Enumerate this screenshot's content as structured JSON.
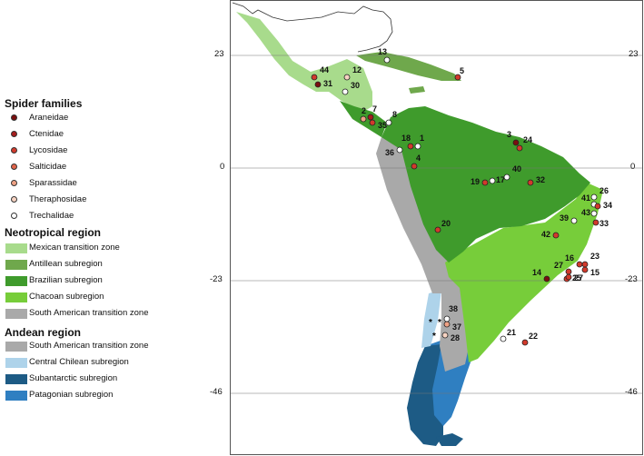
{
  "legend": {
    "spider_heading": "Spider families",
    "families": [
      {
        "label": "Araneidae",
        "color": "#7a0f0f"
      },
      {
        "label": "Ctenidae",
        "color": "#a51d1d"
      },
      {
        "label": "Lycosidae",
        "color": "#d23a2c"
      },
      {
        "label": "Salticidae",
        "color": "#e0644a"
      },
      {
        "label": "Sparassidae",
        "color": "#eea184"
      },
      {
        "label": "Theraphosidae",
        "color": "#f7d3c2"
      },
      {
        "label": "Trechalidae",
        "color": "#ffffff"
      }
    ],
    "neotropical_heading": "Neotropical region",
    "neotropical": [
      {
        "label": "Mexican transition zone",
        "color": "#a8db8c"
      },
      {
        "label": "Antillean subregion",
        "color": "#6fa84c"
      },
      {
        "label": "Brazilian subregion",
        "color": "#3f9b2c"
      },
      {
        "label": "Chacoan subregion",
        "color": "#77cd3a"
      },
      {
        "label": "South American transition zone",
        "color": "#a9a9a9"
      }
    ],
    "andean_heading": "Andean region",
    "andean": [
      {
        "label": "South American transition zone",
        "color": "#a9a9a9"
      },
      {
        "label": "Central Chilean subregion",
        "color": "#aed3ea"
      },
      {
        "label": "Subantarctic subregion",
        "color": "#1d5b85"
      },
      {
        "label": "Patagonian subregion",
        "color": "#2f7fc1"
      }
    ]
  },
  "map": {
    "latitudes": [
      "23",
      "0",
      "-23",
      "-46"
    ],
    "sites": [
      {
        "label": "44",
        "family": "Lycosidae"
      },
      {
        "label": "31",
        "family": "Araneidae"
      },
      {
        "label": "12",
        "family": "Theraphosidae"
      },
      {
        "label": "30",
        "family": "Trechalidae"
      },
      {
        "label": "13",
        "family": "Trechalidae"
      },
      {
        "label": "5",
        "family": "Lycosidae"
      },
      {
        "label": "2",
        "family": "Sparassidae"
      },
      {
        "label": "7",
        "family": "Ctenidae"
      },
      {
        "label": "35",
        "family": "Lycosidae"
      },
      {
        "label": "8",
        "family": "Trechalidae"
      },
      {
        "label": "18",
        "family": "Lycosidae"
      },
      {
        "label": "1",
        "family": "Trechalidae"
      },
      {
        "label": "36",
        "family": "Trechalidae"
      },
      {
        "label": "4",
        "family": "Lycosidae"
      },
      {
        "label": "3",
        "family": "Araneidae"
      },
      {
        "label": "24",
        "family": "Lycosidae"
      },
      {
        "label": "19",
        "family": "Lycosidae"
      },
      {
        "label": "17",
        "family": "Trechalidae"
      },
      {
        "label": "40",
        "family": "Trechalidae"
      },
      {
        "label": "32",
        "family": "Lycosidae"
      },
      {
        "label": "20",
        "family": "Lycosidae"
      },
      {
        "label": "26",
        "family": "Trechalidae"
      },
      {
        "label": "41",
        "family": "Trechalidae"
      },
      {
        "label": "34",
        "family": "Lycosidae"
      },
      {
        "label": "43",
        "family": "Trechalidae"
      },
      {
        "label": "39",
        "family": "Trechalidae"
      },
      {
        "label": "33",
        "family": "Lycosidae"
      },
      {
        "label": "42",
        "family": "Lycosidae"
      },
      {
        "label": "16",
        "family": "Lycosidae"
      },
      {
        "label": "23",
        "family": "Lycosidae"
      },
      {
        "label": "15",
        "family": "Lycosidae"
      },
      {
        "label": "27",
        "family": "Lycosidae"
      },
      {
        "label": "25",
        "family": "Lycosidae"
      },
      {
        "label": "14",
        "family": "Araneidae"
      },
      {
        "label": "27",
        "family": "Lycosidae"
      },
      {
        "label": "38",
        "family": "Trechalidae"
      },
      {
        "label": "37",
        "family": "Sparassidae"
      },
      {
        "label": "28",
        "family": "Theraphosidae"
      },
      {
        "label": "22",
        "family": "Lycosidae"
      },
      {
        "label": "21",
        "family": "Trechalidae"
      }
    ],
    "star_marker": "*"
  }
}
